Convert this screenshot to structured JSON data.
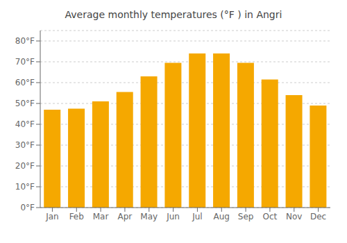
{
  "chart_data": {
    "type": "bar",
    "title": "Average monthly temperatures (°F ) in Angri",
    "categories": [
      "Jan",
      "Feb",
      "Mar",
      "Apr",
      "May",
      "Jun",
      "Jul",
      "Aug",
      "Sep",
      "Oct",
      "Nov",
      "Dec"
    ],
    "values": [
      47,
      47.5,
      51,
      55.5,
      63,
      69.5,
      74,
      74,
      69.5,
      61.5,
      54,
      49
    ],
    "color": "#F5A800",
    "ylim": [
      0,
      85
    ],
    "yticks": [
      {
        "value": 0,
        "label": "0°F"
      },
      {
        "value": 10,
        "label": "10°F"
      },
      {
        "value": 20,
        "label": "20°F"
      },
      {
        "value": 30,
        "label": "30°F"
      },
      {
        "value": 40,
        "label": "40°F"
      },
      {
        "value": 50,
        "label": "50°F"
      },
      {
        "value": 60,
        "label": "60°F"
      },
      {
        "value": 70,
        "label": "70°F"
      },
      {
        "value": 80,
        "label": "80°F"
      }
    ],
    "grid": true
  }
}
